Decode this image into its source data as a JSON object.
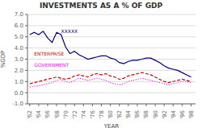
{
  "chart_data": {
    "type": "line",
    "title": "INVESTMENTS AS A % OF GDP",
    "x_label": "YEAR",
    "y_label": "%GDP",
    "x": [
      1962,
      1963,
      1964,
      1965,
      1966,
      1967,
      1968,
      1969,
      1970,
      1971,
      1972,
      1973,
      1974,
      1975,
      1976,
      1977,
      1978,
      1979,
      1980,
      1981,
      1982,
      1983,
      1984,
      1985,
      1986,
      1987,
      1988,
      1989,
      1990,
      1991,
      1992,
      1993,
      1994,
      1995,
      1996,
      1997,
      1998
    ],
    "series": [
      {
        "color": "#000080",
        "line_style": "solid",
        "values": [
          5.2,
          5.4,
          5.2,
          5.5,
          4.9,
          4.5,
          5.4,
          5.2,
          4.1,
          3.5,
          3.7,
          3.4,
          3.2,
          3.0,
          3.1,
          3.2,
          3.3,
          3.3,
          3.1,
          3.0,
          2.7,
          2.6,
          2.8,
          2.9,
          2.9,
          3.0,
          3.1,
          3.1,
          2.9,
          2.7,
          2.4,
          2.2,
          2.1,
          2.0,
          1.8,
          1.6,
          1.4
        ]
      },
      {
        "color": "#CC0000",
        "line_style": "dashed",
        "values": [
          0.8,
          0.9,
          1.0,
          1.1,
          1.2,
          1.3,
          1.4,
          1.3,
          1.2,
          1.3,
          1.5,
          1.6,
          1.5,
          1.4,
          1.6,
          1.7,
          1.6,
          1.7,
          1.5,
          1.4,
          1.2,
          1.3,
          1.5,
          1.6,
          1.7,
          1.8,
          1.7,
          1.6,
          1.4,
          1.2,
          1.0,
          0.9,
          1.0,
          1.1,
          1.2,
          1.1,
          1.0
        ]
      },
      {
        "color": "#FF00FF",
        "line_style": "dotted",
        "values": [
          0.5,
          0.6,
          0.6,
          0.7,
          0.8,
          0.9,
          1.1,
          1.2,
          1.0,
          0.9,
          1.1,
          1.3,
          1.2,
          1.1,
          1.2,
          1.3,
          1.2,
          1.1,
          0.9,
          0.8,
          0.7,
          0.8,
          1.0,
          1.1,
          1.2,
          1.3,
          1.2,
          1.1,
          1.0,
          0.9,
          0.8,
          0.7,
          0.8,
          0.9,
          1.0,
          1.0,
          0.9
        ]
      }
    ],
    "annotations": [
      {
        "text": "XXXXX",
        "x": 1969,
        "y": 5.5,
        "color": "#000080"
      },
      {
        "text": "ENTERPRISE",
        "x": 1963,
        "y": 3.5,
        "color": "#CC0000"
      },
      {
        "text": "GOVERNMENT",
        "x": 1963,
        "y": 2.5,
        "color": "#FF00FF"
      }
    ],
    "xlim": [
      1961.5,
      1999
    ],
    "xticks": [
      {
        "value": 1962,
        "label": "'62"
      },
      {
        "value": 1964,
        "label": "'64"
      },
      {
        "value": 1966,
        "label": "'66"
      },
      {
        "value": 1968,
        "label": "'68"
      },
      {
        "value": 1970,
        "label": "'70"
      },
      {
        "value": 1972,
        "label": "'72"
      },
      {
        "value": 1974,
        "label": "'74"
      },
      {
        "value": 1976,
        "label": "'76"
      },
      {
        "value": 1978,
        "label": "'78"
      },
      {
        "value": 1980,
        "label": "'80"
      },
      {
        "value": 1982,
        "label": "'82"
      },
      {
        "value": 1984,
        "label": "'84"
      },
      {
        "value": 1986,
        "label": "'86"
      },
      {
        "value": 1988,
        "label": "'88"
      },
      {
        "value": 1990,
        "label": "'90"
      },
      {
        "value": 1992,
        "label": "'92"
      },
      {
        "value": 1994,
        "label": "'94"
      },
      {
        "value": 1996,
        "label": "'96"
      },
      {
        "value": 1998,
        "label": "'98"
      }
    ],
    "ylim": [
      -1.0,
      7.0
    ],
    "yticks": [
      {
        "value": 7.0,
        "label": "7.0"
      },
      {
        "value": 6.0,
        "label": "6.0"
      },
      {
        "value": 5.0,
        "label": "5.0"
      },
      {
        "value": 4.0,
        "label": "4.0"
      },
      {
        "value": 3.0,
        "label": "3.0"
      },
      {
        "value": 2.0,
        "label": "2.0"
      },
      {
        "value": 1.0,
        "label": "1.0"
      },
      {
        "value": 0.0,
        "label": "0.0"
      },
      {
        "value": -1.0,
        "label": "-1.0"
      }
    ],
    "grid": true
  }
}
